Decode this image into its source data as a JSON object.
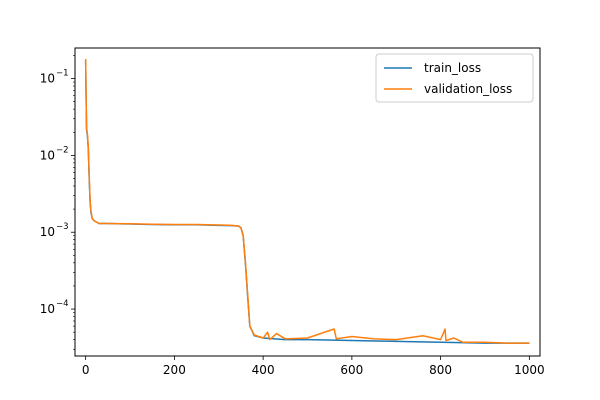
{
  "chart_data": {
    "type": "line",
    "title": "",
    "xlabel": "",
    "ylabel": "",
    "yscale": "log",
    "xlim": [
      -24,
      1024
    ],
    "ylim": [
      2.45e-05,
      0.25
    ],
    "grid": false,
    "legend_position": "top-right",
    "x_ticks": [
      0,
      200,
      400,
      600,
      800,
      1000
    ],
    "x_tick_labels": [
      "0",
      "200",
      "400",
      "600",
      "800",
      "1000"
    ],
    "y_ticks": [
      0.1,
      0.01,
      0.001,
      0.0001
    ],
    "y_tick_labels": [
      {
        "base": "10",
        "exp": "−1"
      },
      {
        "base": "10",
        "exp": "−2"
      },
      {
        "base": "10",
        "exp": "−3"
      },
      {
        "base": "10",
        "exp": "−4"
      }
    ],
    "series": [
      {
        "name": "train_loss",
        "color": "#1f77b4",
        "x": [
          0,
          1,
          2,
          4,
          6,
          8,
          10,
          12,
          15,
          20,
          30,
          50,
          100,
          150,
          200,
          250,
          300,
          330,
          345,
          350,
          355,
          360,
          365,
          370,
          380,
          400,
          450,
          500,
          600,
          700,
          800,
          900,
          1000
        ],
        "y": [
          0.17,
          0.06,
          0.022,
          0.018,
          0.012,
          0.005,
          0.0025,
          0.0018,
          0.0015,
          0.0014,
          0.0013,
          0.0013,
          0.00128,
          0.00126,
          0.00125,
          0.00125,
          0.00123,
          0.00122,
          0.0012,
          0.00115,
          0.0009,
          0.0004,
          0.00015,
          6e-05,
          4.5e-05,
          4.2e-05,
          4e-05,
          4e-05,
          3.9e-05,
          3.8e-05,
          3.7e-05,
          3.6e-05,
          3.6e-05
        ]
      },
      {
        "name": "validation_loss",
        "color": "#ff7f0e",
        "x": [
          0,
          1,
          2,
          4,
          6,
          8,
          10,
          12,
          15,
          20,
          30,
          50,
          100,
          150,
          200,
          250,
          300,
          330,
          345,
          350,
          355,
          360,
          365,
          370,
          380,
          400,
          410,
          415,
          430,
          450,
          500,
          560,
          565,
          600,
          650,
          700,
          760,
          800,
          810,
          812,
          830,
          850,
          900,
          950,
          1000
        ],
        "y": [
          0.18,
          0.06,
          0.023,
          0.019,
          0.013,
          0.0055,
          0.0026,
          0.0019,
          0.0015,
          0.0014,
          0.0013,
          0.0013,
          0.00129,
          0.00127,
          0.00126,
          0.00126,
          0.00124,
          0.00123,
          0.0012,
          0.00114,
          0.0009,
          0.00042,
          0.00016,
          6e-05,
          4.6e-05,
          4.2e-05,
          5e-05,
          4e-05,
          4.8e-05,
          4.1e-05,
          4.2e-05,
          5.5e-05,
          4.1e-05,
          4.4e-05,
          4.1e-05,
          4e-05,
          4.5e-05,
          4e-05,
          5.5e-05,
          3.9e-05,
          4.2e-05,
          3.7e-05,
          3.7e-05,
          3.6e-05,
          3.6e-05
        ]
      }
    ]
  }
}
